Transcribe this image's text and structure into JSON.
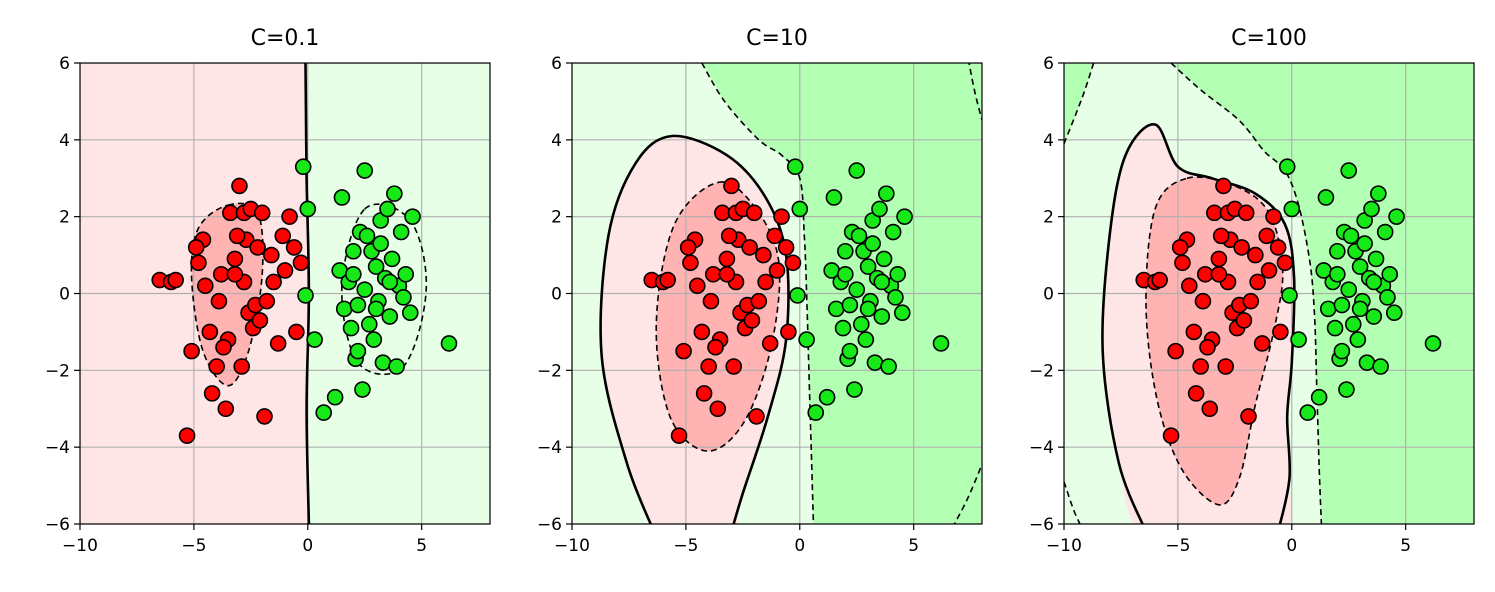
{
  "figure": {
    "colors": {
      "class_neg": "#ff0000",
      "class_pos": "#17e817",
      "neg_strong": "#ffb3b3",
      "neg_weak": "#ffe6e6",
      "pos_weak": "#e6ffe6",
      "pos_strong": "#b3ffb3",
      "grid": "#b0b0b0"
    }
  },
  "chart_data": [
    {
      "type": "scatter",
      "title": "C=0.1",
      "xlim": [
        -10,
        8
      ],
      "ylim": [
        -6,
        6
      ],
      "xticks": [
        -10,
        -5,
        0,
        5
      ],
      "yticks": [
        -6,
        -4,
        -2,
        0,
        2,
        4,
        6
      ],
      "xtick_labels": [
        "−10",
        "−5",
        "0",
        "5"
      ],
      "ytick_labels": [
        "−6",
        "−4",
        "−2",
        "0",
        "2",
        "4",
        "6"
      ],
      "grid": true,
      "background": "split"
    },
    {
      "type": "scatter",
      "title": "C=10",
      "xlim": [
        -10,
        8
      ],
      "ylim": [
        -6,
        6
      ],
      "xticks": [
        -10,
        -5,
        0,
        5
      ],
      "yticks": [
        -6,
        -4,
        -2,
        0,
        2,
        4,
        6
      ],
      "xtick_labels": [
        "−10",
        "−5",
        "0",
        "5"
      ],
      "ytick_labels": [
        "−6",
        "−4",
        "−2",
        "0",
        "2",
        "4",
        "6"
      ],
      "grid": true,
      "background": "pos_weak"
    },
    {
      "type": "scatter",
      "title": "C=100",
      "xlim": [
        -10,
        8
      ],
      "ylim": [
        -6,
        6
      ],
      "xticks": [
        -10,
        -5,
        0,
        5
      ],
      "yticks": [
        -6,
        -4,
        -2,
        0,
        2,
        4,
        6
      ],
      "xtick_labels": [
        "−10",
        "−5",
        "0",
        "5"
      ],
      "ytick_labels": [
        "−6",
        "−4",
        "−2",
        "0",
        "2",
        "4",
        "6"
      ],
      "grid": true,
      "background": "pos_weak"
    }
  ],
  "points": {
    "negative": [
      [
        -6.5,
        0.35
      ],
      [
        -6.0,
        0.3
      ],
      [
        -5.8,
        0.35
      ],
      [
        -5.3,
        -3.7
      ],
      [
        -5.1,
        -1.5
      ],
      [
        -4.8,
        0.8
      ],
      [
        -4.6,
        1.4
      ],
      [
        -4.5,
        0.2
      ],
      [
        -4.3,
        -1.0
      ],
      [
        -4.2,
        -2.6
      ],
      [
        -4.0,
        -1.9
      ],
      [
        -3.9,
        -0.2
      ],
      [
        -3.8,
        0.5
      ],
      [
        -3.6,
        -3.0
      ],
      [
        -3.5,
        -1.2
      ],
      [
        -3.4,
        2.1
      ],
      [
        -3.2,
        0.9
      ],
      [
        -3.0,
        2.8
      ],
      [
        -2.9,
        -1.9
      ],
      [
        -2.8,
        2.1
      ],
      [
        -2.7,
        1.4
      ],
      [
        -2.6,
        -0.5
      ],
      [
        -2.5,
        2.2
      ],
      [
        -2.4,
        -0.9
      ],
      [
        -2.3,
        -0.3
      ],
      [
        -2.2,
        1.2
      ],
      [
        -2.1,
        -0.7
      ],
      [
        -2.0,
        2.1
      ],
      [
        -1.9,
        -3.2
      ],
      [
        -1.8,
        -0.2
      ],
      [
        -1.6,
        1.0
      ],
      [
        -1.5,
        0.3
      ],
      [
        -1.3,
        -1.3
      ],
      [
        -1.1,
        1.5
      ],
      [
        -1.0,
        0.6
      ],
      [
        -0.8,
        2.0
      ],
      [
        -0.6,
        1.2
      ],
      [
        -0.5,
        -1.0
      ],
      [
        -0.3,
        0.8
      ],
      [
        -2.8,
        0.3
      ],
      [
        -3.2,
        0.5
      ],
      [
        -4.9,
        1.2
      ],
      [
        -3.1,
        1.5
      ],
      [
        -3.7,
        -1.4
      ]
    ],
    "positive": [
      [
        -0.2,
        3.3
      ],
      [
        0.0,
        2.2
      ],
      [
        -0.1,
        -0.05
      ],
      [
        0.3,
        -1.2
      ],
      [
        0.7,
        -3.1
      ],
      [
        1.2,
        -2.7
      ],
      [
        1.4,
        0.6
      ],
      [
        1.5,
        2.5
      ],
      [
        1.6,
        -0.4
      ],
      [
        1.8,
        0.3
      ],
      [
        1.9,
        -0.9
      ],
      [
        2.0,
        1.1
      ],
      [
        2.1,
        -1.7
      ],
      [
        2.2,
        -0.3
      ],
      [
        2.3,
        1.6
      ],
      [
        2.4,
        -2.5
      ],
      [
        2.5,
        3.2
      ],
      [
        2.5,
        0.1
      ],
      [
        2.6,
        1.5
      ],
      [
        2.7,
        -0.8
      ],
      [
        2.8,
        1.1
      ],
      [
        2.9,
        -1.2
      ],
      [
        3.0,
        0.7
      ],
      [
        3.1,
        -0.2
      ],
      [
        3.2,
        1.9
      ],
      [
        3.3,
        -1.8
      ],
      [
        3.4,
        0.4
      ],
      [
        3.5,
        2.2
      ],
      [
        3.6,
        -0.6
      ],
      [
        3.7,
        0.9
      ],
      [
        3.8,
        2.6
      ],
      [
        3.9,
        -1.9
      ],
      [
        4.0,
        0.2
      ],
      [
        4.1,
        1.6
      ],
      [
        4.2,
        -0.1
      ],
      [
        4.3,
        0.5
      ],
      [
        4.5,
        -0.5
      ],
      [
        4.6,
        2.0
      ],
      [
        6.2,
        -1.3
      ],
      [
        2.2,
        -1.5
      ],
      [
        3.0,
        -0.4
      ],
      [
        3.6,
        0.3
      ],
      [
        2.0,
        0.5
      ],
      [
        3.2,
        1.3
      ]
    ]
  }
}
